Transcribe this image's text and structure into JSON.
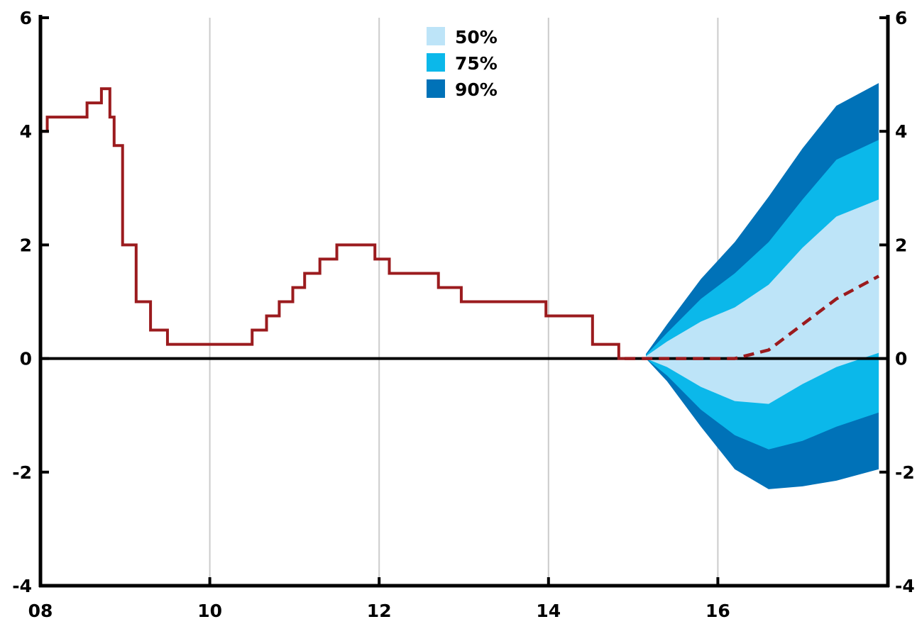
{
  "chart_data": {
    "type": "area",
    "title": "",
    "xlabel": "",
    "ylabel": "",
    "xlim": [
      2008,
      2017.9
    ],
    "ylim": [
      -4,
      6
    ],
    "x_ticks": [
      {
        "value": 2008,
        "label": "08"
      },
      {
        "value": 2010,
        "label": "10"
      },
      {
        "value": 2012,
        "label": "12"
      },
      {
        "value": 2014,
        "label": "14"
      },
      {
        "value": 2016,
        "label": "16"
      }
    ],
    "y_ticks_left": [
      {
        "value": 6,
        "label": "6"
      },
      {
        "value": 4,
        "label": "4"
      },
      {
        "value": 2,
        "label": "2"
      },
      {
        "value": 0,
        "label": "0"
      },
      {
        "value": -2,
        "label": "-2"
      },
      {
        "value": -4,
        "label": "-4"
      }
    ],
    "y_ticks_right": [
      {
        "value": 6,
        "label": "6"
      },
      {
        "value": 4,
        "label": "4"
      },
      {
        "value": 2,
        "label": "2"
      },
      {
        "value": 0,
        "label": "0"
      },
      {
        "value": -2,
        "label": "-2"
      },
      {
        "value": -4,
        "label": "-4"
      }
    ],
    "grid": "vertical",
    "legend_position": "top-center",
    "legend": [
      {
        "label": "50%",
        "color": "#bde4f8"
      },
      {
        "label": "75%",
        "color": "#0bb8ea"
      },
      {
        "label": "90%",
        "color": "#0072b8"
      }
    ],
    "colors": {
      "history": "#9b1b1e",
      "projection": "#9b1b1e",
      "zero_line": "#000000",
      "grid": "#cccccc"
    },
    "history": {
      "name": "",
      "style": "step",
      "points": [
        [
          2008.0,
          4.0
        ],
        [
          2008.08,
          4.25
        ],
        [
          2008.55,
          4.5
        ],
        [
          2008.72,
          4.75
        ],
        [
          2008.82,
          4.25
        ],
        [
          2008.87,
          3.75
        ],
        [
          2008.97,
          2.0
        ],
        [
          2009.13,
          1.0
        ],
        [
          2009.3,
          0.5
        ],
        [
          2009.5,
          0.25
        ],
        [
          2010.5,
          0.5
        ],
        [
          2010.67,
          0.75
        ],
        [
          2010.82,
          1.0
        ],
        [
          2010.98,
          1.25
        ],
        [
          2011.12,
          1.5
        ],
        [
          2011.3,
          1.75
        ],
        [
          2011.5,
          2.0
        ],
        [
          2011.95,
          1.75
        ],
        [
          2012.12,
          1.5
        ],
        [
          2012.7,
          1.25
        ],
        [
          2012.97,
          1.0
        ],
        [
          2013.97,
          0.75
        ],
        [
          2014.52,
          0.25
        ],
        [
          2014.83,
          0.0
        ],
        [
          2014.9,
          0.0
        ]
      ]
    },
    "projection": {
      "name": "",
      "style": "dashed",
      "x": [
        2014.9,
        2015.15,
        2015.4,
        2015.8,
        2016.2,
        2016.6,
        2017.0,
        2017.4,
        2017.9
      ],
      "y": [
        0.0,
        0.0,
        0.0,
        0.0,
        0.0,
        0.15,
        0.6,
        1.05,
        1.45
      ]
    },
    "fan_bands": {
      "x": [
        2015.15,
        2015.4,
        2015.8,
        2016.2,
        2016.6,
        2017.0,
        2017.4,
        2017.9
      ],
      "bands": [
        {
          "label": "90%",
          "upper": [
            0.08,
            0.6,
            1.4,
            2.05,
            2.85,
            3.7,
            4.45,
            4.85
          ],
          "lower": [
            0.0,
            -0.4,
            -1.2,
            -1.95,
            -2.3,
            -2.25,
            -2.15,
            -1.95
          ]
        },
        {
          "label": "75%",
          "upper": [
            0.06,
            0.45,
            1.05,
            1.5,
            2.05,
            2.8,
            3.5,
            3.85
          ],
          "lower": [
            0.0,
            -0.3,
            -0.9,
            -1.35,
            -1.6,
            -1.45,
            -1.2,
            -0.95
          ]
        },
        {
          "label": "50%",
          "upper": [
            0.04,
            0.3,
            0.65,
            0.9,
            1.3,
            1.95,
            2.5,
            2.8
          ],
          "lower": [
            0.0,
            -0.15,
            -0.5,
            -0.75,
            -0.8,
            -0.45,
            -0.15,
            0.1
          ]
        }
      ]
    }
  }
}
